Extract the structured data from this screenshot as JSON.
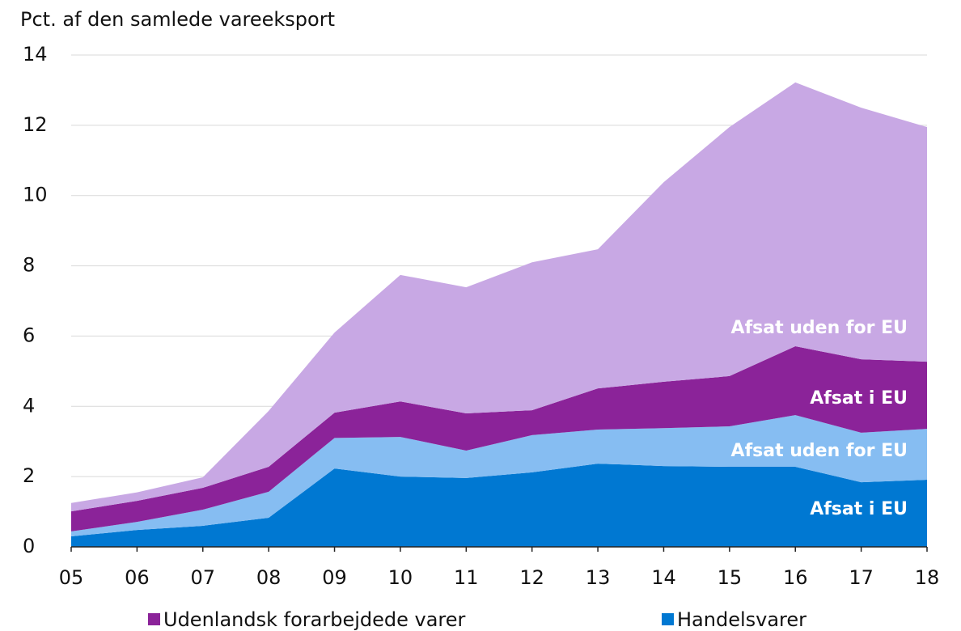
{
  "chart_data": {
    "type": "stacked_area",
    "title": "Pct. af den samlede vareeksport",
    "categories": [
      "05",
      "06",
      "07",
      "08",
      "09",
      "10",
      "11",
      "12",
      "13",
      "14",
      "15",
      "16",
      "17",
      "18"
    ],
    "series": [
      {
        "name": "Afsat i EU",
        "color": "#0078d2",
        "values": [
          0.3,
          0.48,
          0.6,
          0.83,
          2.23,
          2.0,
          1.96,
          2.12,
          2.37,
          2.3,
          2.28,
          2.28,
          1.84,
          1.91
        ]
      },
      {
        "name": "Afsat uden for EU",
        "color": "#86bdf2",
        "values": [
          0.14,
          0.23,
          0.46,
          0.74,
          0.87,
          1.13,
          0.78,
          1.06,
          0.97,
          1.08,
          1.15,
          1.47,
          1.41,
          1.45
        ]
      },
      {
        "name": "Afsat i EU",
        "color": "#8b2399",
        "values": [
          0.57,
          0.6,
          0.62,
          0.71,
          0.72,
          1.01,
          1.06,
          0.71,
          1.17,
          1.32,
          1.43,
          1.96,
          2.09,
          1.91
        ]
      },
      {
        "name": "Afsat uden for EU",
        "color": "#c8a8e4",
        "values": [
          0.24,
          0.24,
          0.3,
          1.59,
          2.28,
          3.6,
          3.59,
          4.21,
          3.96,
          5.68,
          7.09,
          7.51,
          7.16,
          6.68
        ]
      }
    ],
    "legend": [
      {
        "name": "Udenlandsk forarbejdede varer",
        "color": "#8b2399"
      },
      {
        "name": "Handelsvarer",
        "color": "#0078d2"
      }
    ],
    "ylim": [
      0,
      14
    ],
    "yticks": [
      0,
      2,
      4,
      6,
      8,
      10,
      12,
      14
    ],
    "grid": true
  }
}
